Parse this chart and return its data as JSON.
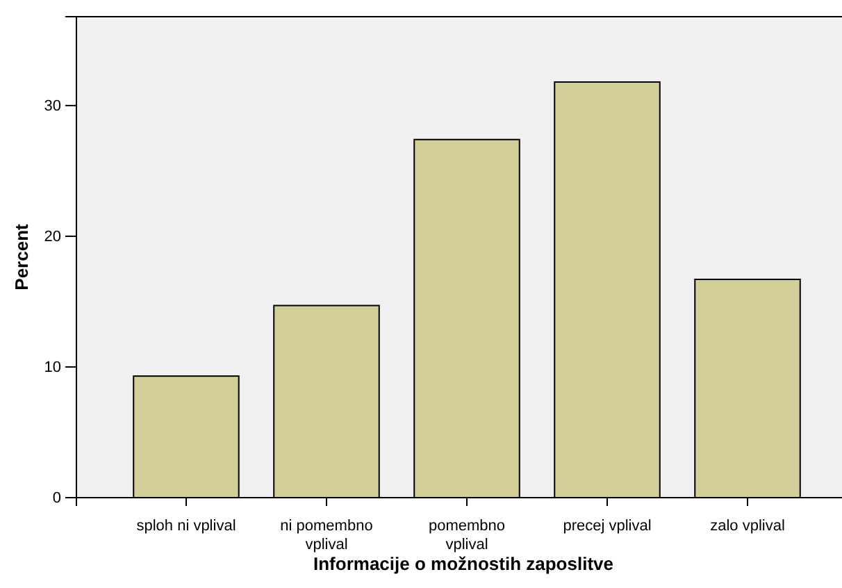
{
  "chart_data": {
    "type": "bar",
    "xlabel": "Informacije o možnostih zaposlitve",
    "ylabel": "Percent",
    "categories": [
      "sploh ni vplival",
      "ni pomembno vplival",
      "pomembno vplival",
      "precej vplival",
      "zalo vplival"
    ],
    "values": [
      9.3,
      14.7,
      27.4,
      31.8,
      16.7
    ],
    "color": "#d3ce97",
    "ylim": [
      0,
      36.8
    ],
    "yticks": [
      0,
      10,
      20,
      30
    ],
    "grid": false
  }
}
